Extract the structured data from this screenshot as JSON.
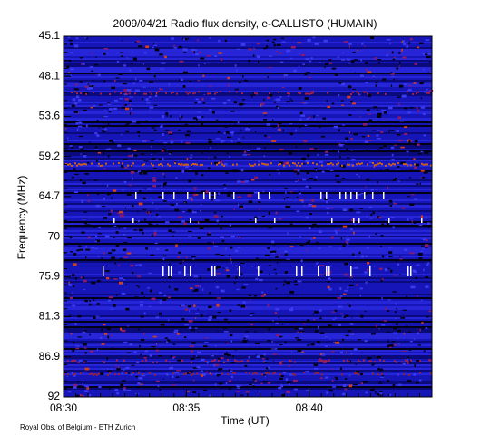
{
  "chart_data": {
    "type": "spectrogram",
    "title": "2009/04/21  Radio flux density, e-CALLISTO (HUMAIN)",
    "xlabel": "Time (UT)",
    "ylabel": "Frequency (MHz)",
    "credit": "Royal Obs. of Belgium - ETH Zurich",
    "xlim": [
      "08:30",
      "08:45"
    ],
    "xticks": [
      "08:30",
      "08:35",
      "08:40"
    ],
    "ylim": [
      45.1,
      92.0
    ],
    "yticks": [
      45.1,
      48.1,
      53.6,
      59.2,
      64.7,
      70.0,
      75.9,
      81.3,
      86.9,
      92.0
    ],
    "y_inverted": true
  }
}
